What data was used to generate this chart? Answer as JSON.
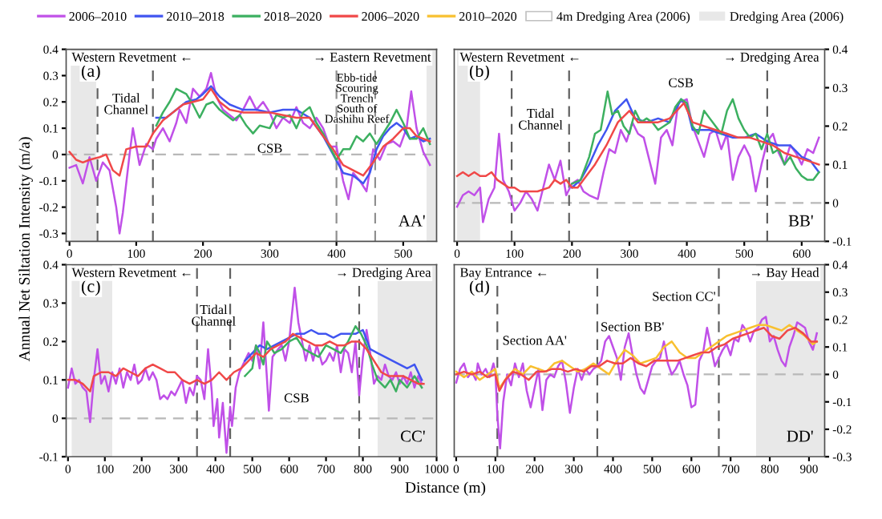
{
  "chart_data": [
    {
      "type": "line",
      "legend": "top",
      "ylabel": "Annual Net Siltation Intensity (m/a)",
      "xlim": [
        -5,
        550
      ],
      "xticks": [
        0,
        100,
        200,
        300,
        400,
        500
      ],
      "ylim": [
        -0.33,
        0.4
      ],
      "yticks": [
        -0.3,
        -0.2,
        -0.1,
        0,
        0.1,
        0.2,
        0.3,
        0.4
      ],
      "series": [
        {
          "name": "2006–2010",
          "color": "#c050e8",
          "x": [
            0,
            10,
            20,
            30,
            40,
            50,
            60,
            70,
            75,
            80,
            90,
            95,
            105,
            115,
            125,
            130,
            140,
            150,
            160,
            165,
            175,
            185,
            195,
            205,
            212,
            220,
            230,
            240,
            250,
            260,
            270,
            280,
            290,
            300,
            310,
            320,
            330,
            340,
            350,
            360,
            370,
            380,
            390,
            400,
            410,
            418,
            425,
            435,
            445,
            455,
            465,
            475,
            485,
            495,
            505,
            512,
            520,
            530,
            540
          ],
          "values": [
            -0.05,
            -0.04,
            -0.11,
            -0.01,
            -0.1,
            -0.03,
            -0.06,
            -0.2,
            -0.3,
            -0.22,
            0.0,
            0.1,
            -0.04,
            0.04,
            0.02,
            0.06,
            0.1,
            0.05,
            0.12,
            0.17,
            0.12,
            0.25,
            0.22,
            0.25,
            0.31,
            0.22,
            0.17,
            0.15,
            0.13,
            0.17,
            0.22,
            0.17,
            0.2,
            0.16,
            0.1,
            0.14,
            0.12,
            0.18,
            0.12,
            0.1,
            0.14,
            0.1,
            0.03,
            0.03,
            -0.1,
            -0.17,
            -0.07,
            -0.1,
            -0.14,
            0.02,
            -0.02,
            0.04,
            0.05,
            0.03,
            0.1,
            0.24,
            0.1,
            0.01,
            -0.04
          ]
        },
        {
          "name": "2010–2018",
          "color": "#4055f0",
          "x": [
            130,
            145,
            160,
            175,
            190,
            200,
            212,
            225,
            240,
            260,
            280,
            300,
            320,
            340,
            360,
            380,
            395,
            410,
            425,
            440,
            450,
            460,
            470,
            480,
            490,
            500,
            510,
            520,
            530,
            540
          ],
          "values": [
            0.14,
            0.14,
            0.17,
            0.2,
            0.21,
            0.23,
            0.26,
            0.22,
            0.19,
            0.17,
            0.17,
            0.16,
            0.17,
            0.17,
            0.14,
            0.07,
            0.0,
            -0.07,
            -0.08,
            -0.11,
            -0.07,
            0.02,
            0.07,
            0.1,
            0.12,
            0.1,
            0.06,
            0.07,
            0.05,
            0.06
          ]
        },
        {
          "name": "2018–2020",
          "color": "#3cb060",
          "x": [
            130,
            140,
            150,
            160,
            175,
            185,
            195,
            205,
            215,
            225,
            235,
            245,
            255,
            265,
            275,
            285,
            300,
            310,
            320,
            330,
            340,
            350,
            360,
            370,
            380,
            390,
            400,
            410,
            420,
            430,
            440,
            450,
            460,
            470,
            480,
            490,
            500,
            510,
            520,
            530,
            540
          ],
          "values": [
            0.11,
            0.16,
            0.2,
            0.25,
            0.23,
            0.19,
            0.14,
            0.19,
            0.2,
            0.17,
            0.15,
            0.13,
            0.15,
            0.11,
            0.08,
            0.11,
            0.1,
            0.15,
            0.14,
            0.15,
            0.1,
            0.16,
            0.18,
            0.12,
            0.08,
            0.03,
            -0.02,
            0.02,
            0.02,
            0.07,
            0.05,
            0.08,
            0.04,
            0.08,
            0.12,
            0.17,
            0.12,
            0.06,
            0.06,
            0.1,
            0.04
          ]
        },
        {
          "name": "2006–2020",
          "color": "#f04848",
          "x": [
            0,
            10,
            20,
            30,
            45,
            55,
            65,
            75,
            85,
            100,
            115,
            125,
            140,
            155,
            170,
            185,
            200,
            212,
            225,
            240,
            260,
            280,
            300,
            320,
            340,
            360,
            380,
            395,
            410,
            425,
            440,
            455,
            470,
            485,
            500,
            510,
            520,
            530,
            540
          ],
          "values": [
            0.01,
            -0.02,
            -0.03,
            -0.02,
            -0.01,
            0.0,
            -0.06,
            -0.08,
            0.02,
            0.03,
            0.03,
            0.08,
            0.13,
            0.16,
            0.19,
            0.2,
            0.21,
            0.25,
            0.2,
            0.17,
            0.16,
            0.16,
            0.16,
            0.15,
            0.14,
            0.14,
            0.07,
            0.02,
            -0.04,
            -0.06,
            -0.08,
            -0.03,
            0.03,
            0.06,
            0.1,
            0.1,
            0.07,
            0.06,
            0.05
          ]
        }
      ],
      "bands": [
        {
          "axis": "x",
          "from": 2,
          "to": 40,
          "label": "Dredging Area (2006)",
          "color": "#e8e8e8"
        },
        {
          "axis": "x",
          "from": 535,
          "to": 550,
          "color": "#e8e8e8"
        }
      ],
      "ref_lines": [
        {
          "axis": "y",
          "value": 0,
          "color": "#b8b8b8",
          "line_style": "dashed"
        },
        {
          "axis": "x",
          "value": 42,
          "color": "#606060",
          "line_style": "dashed"
        },
        {
          "axis": "x",
          "value": 125,
          "color": "#606060",
          "line_style": "dashed"
        },
        {
          "axis": "x",
          "value": 400,
          "color": "#909090",
          "line_style": "dashed"
        },
        {
          "axis": "x",
          "value": 458,
          "color": "#909090",
          "line_style": "dashed"
        }
      ],
      "annotations": [
        "(a)",
        "Western Revetment ←",
        "→ Eastern Revetment",
        "AA'",
        "Tidal\nChannel",
        "CSB",
        "Ebb-tide\nScouring\nTrench\nSouth of\nDashihu Reef",
        "4m Dredging Area (2006)"
      ]
    },
    {
      "type": "line",
      "xlim": [
        -5,
        640
      ],
      "xticks": [
        0,
        100,
        200,
        300,
        400,
        500,
        600
      ],
      "ylim": [
        -0.1,
        0.4
      ],
      "yticks": [
        -0.1,
        0,
        0.1,
        0.2,
        0.3,
        0.4
      ],
      "series": [
        {
          "name": "2006–2010",
          "color": "#c050e8",
          "x": [
            0,
            10,
            20,
            30,
            40,
            45,
            55,
            65,
            73,
            80,
            90,
            100,
            110,
            120,
            130,
            140,
            150,
            160,
            170,
            180,
            190,
            200,
            210,
            220,
            230,
            245,
            255,
            265,
            275,
            285,
            295,
            305,
            315,
            325,
            335,
            345,
            355,
            365,
            375,
            385,
            400,
            410,
            420,
            430,
            440,
            450,
            460,
            470,
            480,
            490,
            500,
            510,
            520,
            530,
            540,
            550,
            560,
            570,
            580,
            590,
            600,
            610,
            620,
            630
          ],
          "values": [
            -0.01,
            0.02,
            0.03,
            0.02,
            0.04,
            -0.05,
            0.01,
            0.04,
            0.18,
            0.06,
            0.03,
            -0.02,
            0.0,
            0.03,
            0.01,
            -0.02,
            0.04,
            0.1,
            0.06,
            0.11,
            0.02,
            0.05,
            0.06,
            0.03,
            0.02,
            0.01,
            0.08,
            0.14,
            0.13,
            0.19,
            0.16,
            0.21,
            0.18,
            0.17,
            0.11,
            0.05,
            0.17,
            0.19,
            0.15,
            0.26,
            0.27,
            0.2,
            0.16,
            0.12,
            0.18,
            0.19,
            0.14,
            0.18,
            0.06,
            0.12,
            0.15,
            0.12,
            0.03,
            0.1,
            0.16,
            0.18,
            0.13,
            0.1,
            0.15,
            0.13,
            0.1,
            0.14,
            0.13,
            0.17
          ]
        },
        {
          "name": "2010–2018",
          "color": "#4055f0",
          "x": [
            200,
            215,
            230,
            245,
            260,
            275,
            295,
            310,
            330,
            350,
            370,
            390,
            400,
            410,
            425,
            440,
            460,
            480,
            500,
            520,
            540,
            560,
            580,
            600,
            615,
            630
          ],
          "values": [
            0.04,
            0.06,
            0.1,
            0.15,
            0.19,
            0.24,
            0.27,
            0.22,
            0.21,
            0.22,
            0.21,
            0.27,
            0.25,
            0.19,
            0.19,
            0.19,
            0.18,
            0.17,
            0.17,
            0.18,
            0.16,
            0.15,
            0.15,
            0.12,
            0.11,
            0.08
          ]
        },
        {
          "name": "2018–2020",
          "color": "#3cb060",
          "x": [
            200,
            215,
            230,
            240,
            250,
            262,
            270,
            280,
            290,
            300,
            310,
            320,
            330,
            340,
            350,
            360,
            370,
            380,
            390,
            400,
            410,
            420,
            430,
            440,
            450,
            460,
            470,
            480,
            490,
            500,
            510,
            520,
            530,
            540,
            550,
            560,
            570,
            580,
            590,
            600,
            610,
            620,
            630
          ],
          "values": [
            0.05,
            0.06,
            0.12,
            0.18,
            0.19,
            0.29,
            0.23,
            0.24,
            0.2,
            0.18,
            0.24,
            0.21,
            0.22,
            0.21,
            0.19,
            0.2,
            0.21,
            0.25,
            0.27,
            0.26,
            0.2,
            0.18,
            0.24,
            0.22,
            0.2,
            0.18,
            0.24,
            0.27,
            0.22,
            0.19,
            0.17,
            0.18,
            0.14,
            0.18,
            0.13,
            0.14,
            0.1,
            0.12,
            0.09,
            0.07,
            0.06,
            0.06,
            0.08
          ]
        },
        {
          "name": "2006–2020",
          "color": "#f04848",
          "x": [
            0,
            10,
            20,
            30,
            40,
            50,
            60,
            70,
            80,
            90,
            100,
            110,
            120,
            140,
            160,
            170,
            180,
            190,
            200,
            210,
            220,
            240,
            260,
            280,
            300,
            315,
            330,
            350,
            370,
            395,
            410,
            430,
            450,
            470,
            490,
            510,
            530,
            550,
            570,
            590,
            610,
            630
          ],
          "values": [
            0.07,
            0.08,
            0.07,
            0.08,
            0.07,
            0.07,
            0.08,
            0.06,
            0.05,
            0.04,
            0.04,
            0.03,
            0.03,
            0.03,
            0.04,
            0.06,
            0.05,
            0.06,
            0.04,
            0.04,
            0.06,
            0.1,
            0.15,
            0.21,
            0.24,
            0.21,
            0.21,
            0.21,
            0.22,
            0.26,
            0.21,
            0.2,
            0.19,
            0.18,
            0.17,
            0.17,
            0.16,
            0.15,
            0.13,
            0.12,
            0.11,
            0.1
          ]
        }
      ],
      "bands": [
        {
          "axis": "x",
          "from": 0,
          "to": 40,
          "color": "#e8e8e8"
        }
      ],
      "ref_lines": [
        {
          "axis": "y",
          "value": 0,
          "color": "#b8b8b8",
          "line_style": "dashed"
        },
        {
          "axis": "x",
          "value": 95,
          "color": "#606060",
          "line_style": "dashed"
        },
        {
          "axis": "x",
          "value": 195,
          "color": "#606060",
          "line_style": "dashed"
        },
        {
          "axis": "x",
          "value": 540,
          "color": "#606060",
          "line_style": "dashed"
        }
      ],
      "annotations": [
        "(b)",
        "Western Revetment ←",
        "→ Dredging Area",
        "BB'",
        "Tidal\nChannel",
        "CSB"
      ]
    },
    {
      "type": "line",
      "xlabel": "Distance (m)",
      "xlim": [
        -5,
        1000
      ],
      "xticks": [
        0,
        100,
        200,
        300,
        400,
        500,
        600,
        700,
        800,
        900,
        1000
      ],
      "ylim": [
        -0.1,
        0.4
      ],
      "yticks": [
        -0.1,
        0,
        0.1,
        0.2,
        0.3,
        0.4
      ],
      "series": [
        {
          "name": "2006–2010",
          "color": "#c050e8",
          "x": [
            0,
            10,
            20,
            30,
            40,
            50,
            60,
            70,
            80,
            90,
            100,
            110,
            120,
            130,
            140,
            150,
            160,
            170,
            180,
            190,
            200,
            210,
            220,
            230,
            240,
            250,
            260,
            270,
            280,
            290,
            300,
            310,
            320,
            330,
            340,
            350,
            360,
            370,
            380,
            390,
            395,
            405,
            410,
            420,
            430,
            440,
            445,
            455,
            465,
            480,
            490,
            500,
            510,
            520,
            530,
            540,
            545,
            555,
            570,
            580,
            590,
            600,
            615,
            625,
            635,
            645,
            655,
            665,
            675,
            690,
            700,
            710,
            720,
            730,
            740,
            750,
            760,
            770,
            780,
            790,
            800,
            810,
            820,
            830,
            840,
            850,
            860,
            870,
            880,
            890,
            900,
            910,
            920,
            930,
            940,
            950,
            960
          ],
          "values": [
            0.08,
            0.13,
            0.09,
            0.1,
            0.08,
            0.07,
            -0.01,
            0.1,
            0.18,
            0.09,
            0.11,
            0.07,
            0.12,
            0.09,
            0.13,
            0.08,
            0.12,
            0.1,
            0.14,
            0.09,
            0.1,
            0.13,
            0.1,
            0.12,
            0.1,
            0.05,
            0.06,
            0.05,
            0.07,
            0.06,
            0.08,
            0.1,
            0.04,
            0.08,
            0.06,
            0.11,
            0.1,
            0.05,
            0.18,
            0.07,
            -0.02,
            0.05,
            -0.05,
            0.04,
            -0.09,
            0.03,
            -0.02,
            0.08,
            0.12,
            0.15,
            0.17,
            0.15,
            0.19,
            0.13,
            0.25,
            0.1,
            0.02,
            0.16,
            0.18,
            0.19,
            0.15,
            0.2,
            0.34,
            0.25,
            0.2,
            0.15,
            0.19,
            0.15,
            0.19,
            0.14,
            0.15,
            0.17,
            0.15,
            0.19,
            0.12,
            0.18,
            0.17,
            0.12,
            0.2,
            0.06,
            0.16,
            0.23,
            0.17,
            0.09,
            0.11,
            0.1,
            0.14,
            0.11,
            0.1,
            0.12,
            0.09,
            0.11,
            0.09,
            0.12,
            0.08,
            0.11,
            0.09
          ]
        },
        {
          "name": "2010–2018",
          "color": "#4055f0",
          "x": [
            480,
            500,
            520,
            540,
            560,
            580,
            600,
            620,
            640,
            660,
            680,
            700,
            720,
            740,
            760,
            780,
            800,
            820,
            840,
            860,
            880,
            900,
            920,
            940,
            960
          ],
          "values": [
            0.15,
            0.17,
            0.19,
            0.18,
            0.19,
            0.2,
            0.21,
            0.22,
            0.22,
            0.23,
            0.22,
            0.22,
            0.21,
            0.22,
            0.22,
            0.22,
            0.23,
            0.18,
            0.17,
            0.16,
            0.15,
            0.14,
            0.13,
            0.14,
            0.1
          ]
        },
        {
          "name": "2018–2020",
          "color": "#3cb060",
          "x": [
            480,
            490,
            500,
            510,
            520,
            530,
            540,
            560,
            580,
            600,
            620,
            640,
            660,
            680,
            700,
            720,
            740,
            760,
            780,
            795,
            810,
            825,
            840,
            860,
            875,
            890,
            900,
            920,
            940,
            960
          ],
          "values": [
            0.11,
            0.12,
            0.13,
            0.19,
            0.17,
            0.14,
            0.2,
            0.17,
            0.18,
            0.2,
            0.21,
            0.18,
            0.17,
            0.16,
            0.19,
            0.18,
            0.17,
            0.2,
            0.24,
            0.22,
            0.19,
            0.14,
            0.1,
            0.08,
            0.1,
            0.07,
            0.1,
            0.08,
            0.11,
            0.08
          ]
        },
        {
          "name": "2006–2020",
          "color": "#f04848",
          "x": [
            0,
            20,
            40,
            60,
            70,
            90,
            110,
            130,
            150,
            170,
            190,
            210,
            230,
            250,
            270,
            290,
            310,
            330,
            350,
            370,
            390,
            410,
            430,
            450,
            470,
            490,
            510,
            530,
            550,
            570,
            590,
            610,
            630,
            650,
            670,
            690,
            710,
            730,
            750,
            770,
            790,
            810,
            830,
            850,
            870,
            890,
            910,
            930,
            950,
            965
          ],
          "values": [
            0.1,
            0.1,
            0.09,
            0.07,
            0.11,
            0.12,
            0.12,
            0.11,
            0.13,
            0.12,
            0.11,
            0.13,
            0.14,
            0.13,
            0.12,
            0.12,
            0.1,
            0.09,
            0.1,
            0.09,
            0.1,
            0.12,
            0.1,
            0.12,
            0.13,
            0.15,
            0.17,
            0.16,
            0.18,
            0.19,
            0.2,
            0.22,
            0.21,
            0.2,
            0.19,
            0.19,
            0.2,
            0.19,
            0.19,
            0.2,
            0.2,
            0.18,
            0.15,
            0.12,
            0.11,
            0.11,
            0.11,
            0.1,
            0.09,
            0.09
          ]
        }
      ],
      "bands": [
        {
          "axis": "x",
          "from": 10,
          "to": 120,
          "color": "#e8e8e8"
        },
        {
          "axis": "x",
          "from": 840,
          "to": 1000,
          "color": "#e8e8e8"
        }
      ],
      "ref_lines": [
        {
          "axis": "y",
          "value": 0,
          "color": "#b8b8b8",
          "line_style": "dashed"
        },
        {
          "axis": "x",
          "value": 350,
          "color": "#606060",
          "line_style": "dashed"
        },
        {
          "axis": "x",
          "value": 440,
          "color": "#606060",
          "line_style": "dashed"
        },
        {
          "axis": "x",
          "value": 790,
          "color": "#606060",
          "line_style": "dashed"
        }
      ],
      "annotations": [
        "(c)",
        "Western Revetment ←",
        "→ Dredging Area",
        "CC'",
        "Tidal\nChannel",
        "CSB"
      ]
    },
    {
      "type": "line",
      "xlim": [
        -5,
        940
      ],
      "xticks": [
        0,
        100,
        200,
        300,
        400,
        500,
        600,
        700,
        800,
        900
      ],
      "ylim": [
        -0.3,
        0.4
      ],
      "yticks": [
        -0.3,
        -0.2,
        -0.1,
        0,
        0.1,
        0.2,
        0.3,
        0.4
      ],
      "series": [
        {
          "name": "2006–2010",
          "color": "#c050e8",
          "x": [
            0,
            10,
            20,
            30,
            40,
            50,
            55,
            65,
            75,
            85,
            95,
            100,
            105,
            112,
            120,
            130,
            140,
            150,
            160,
            170,
            180,
            190,
            200,
            210,
            220,
            230,
            240,
            250,
            260,
            270,
            280,
            290,
            300,
            310,
            320,
            330,
            340,
            350,
            360,
            370,
            380,
            390,
            400,
            410,
            420,
            430,
            440,
            450,
            460,
            470,
            480,
            490,
            500,
            510,
            520,
            530,
            540,
            550,
            560,
            570,
            580,
            590,
            600,
            610,
            620,
            630,
            640,
            650,
            660,
            670,
            680,
            690,
            700,
            710,
            720,
            730,
            740,
            750,
            760,
            770,
            780,
            790,
            800,
            810,
            820,
            830,
            840,
            850,
            860,
            870,
            880,
            890,
            900,
            910,
            920
          ],
          "values": [
            -0.03,
            0.02,
            0.04,
            -0.01,
            0.01,
            -0.02,
            0.04,
            0.0,
            0.02,
            -0.01,
            0.04,
            0.01,
            -0.15,
            -0.27,
            -0.1,
            0.0,
            -0.04,
            0.04,
            -0.01,
            0.04,
            -0.06,
            -0.12,
            -0.05,
            0.02,
            -0.13,
            -0.02,
            0.0,
            -0.01,
            0.03,
            0.05,
            -0.03,
            -0.14,
            -0.05,
            0.02,
            -0.02,
            0.02,
            0.0,
            0.02,
            0.03,
            0.05,
            0.12,
            0.14,
            0.1,
            0.06,
            -0.02,
            0.1,
            0.15,
            0.07,
            0.0,
            -0.05,
            -0.07,
            -0.02,
            0.03,
            0.05,
            0.06,
            0.12,
            0.04,
            0.0,
            0.02,
            0.05,
            0.0,
            -0.04,
            -0.12,
            -0.11,
            0.05,
            0.08,
            0.17,
            0.1,
            0.03,
            0.06,
            0.09,
            0.11,
            0.07,
            0.13,
            0.12,
            0.18,
            0.16,
            0.12,
            0.16,
            0.17,
            0.2,
            0.21,
            0.12,
            0.14,
            0.09,
            0.05,
            0.03,
            0.1,
            0.14,
            0.19,
            0.18,
            0.17,
            0.12,
            0.09,
            0.15
          ]
        },
        {
          "name": "2010–2020",
          "color": "#f8c030",
          "x": [
            0,
            20,
            40,
            60,
            80,
            100,
            110,
            130,
            150,
            170,
            190,
            210,
            230,
            250,
            270,
            290,
            310,
            330,
            350,
            370,
            390,
            410,
            430,
            450,
            470,
            490,
            510,
            530,
            550,
            570,
            590,
            610,
            630,
            650,
            670,
            690,
            710,
            730,
            750,
            770,
            790,
            810,
            830,
            850,
            870,
            890,
            910,
            920
          ],
          "values": [
            0.01,
            -0.01,
            0.01,
            -0.02,
            0.0,
            0.02,
            -0.05,
            -0.01,
            0.02,
            0.0,
            0.03,
            0.02,
            0.01,
            0.04,
            0.05,
            0.03,
            0.01,
            0.02,
            0.04,
            0.02,
            0.0,
            0.05,
            0.09,
            0.07,
            0.04,
            0.05,
            0.06,
            0.1,
            0.12,
            0.08,
            0.06,
            0.06,
            0.08,
            0.1,
            0.12,
            0.14,
            0.15,
            0.16,
            0.17,
            0.18,
            0.18,
            0.17,
            0.16,
            0.18,
            0.16,
            0.14,
            0.11,
            0.12
          ]
        },
        {
          "name": "2006–2020",
          "color": "#f04848",
          "x": [
            0,
            20,
            40,
            60,
            80,
            100,
            110,
            125,
            145,
            165,
            185,
            205,
            225,
            245,
            265,
            285,
            305,
            325,
            345,
            365,
            385,
            405,
            425,
            445,
            465,
            485,
            505,
            525,
            545,
            565,
            585,
            605,
            625,
            645,
            665,
            685,
            705,
            725,
            745,
            765,
            785,
            805,
            825,
            845,
            865,
            885,
            905,
            920
          ],
          "values": [
            0.0,
            0.01,
            0.0,
            0.01,
            -0.01,
            0.0,
            -0.06,
            -0.02,
            0.01,
            0.0,
            -0.02,
            0.01,
            0.01,
            0.02,
            0.02,
            0.01,
            0.02,
            0.01,
            0.03,
            0.03,
            0.05,
            0.04,
            0.04,
            0.06,
            0.04,
            0.03,
            0.05,
            0.05,
            0.05,
            0.05,
            0.06,
            0.07,
            0.08,
            0.08,
            0.1,
            0.11,
            0.13,
            0.14,
            0.15,
            0.16,
            0.17,
            0.14,
            0.13,
            0.16,
            0.17,
            0.15,
            0.12,
            0.12
          ]
        }
      ],
      "bands": [
        {
          "axis": "x",
          "from": 765,
          "to": 940,
          "color": "#e8e8e8"
        }
      ],
      "ref_lines": [
        {
          "axis": "y",
          "value": 0,
          "color": "#b8b8b8",
          "line_style": "dashed"
        },
        {
          "axis": "x",
          "value": 105,
          "color": "#606060",
          "line_style": "dashed"
        },
        {
          "axis": "x",
          "value": 360,
          "color": "#606060",
          "line_style": "dashed"
        },
        {
          "axis": "x",
          "value": 670,
          "color": "#606060",
          "line_style": "dashed"
        }
      ],
      "annotations": [
        "(d)",
        "Bay Entrance ←",
        "→ Bay Head",
        "DD'",
        "Section AA'",
        "Section BB'",
        "Section CC'"
      ]
    }
  ]
}
